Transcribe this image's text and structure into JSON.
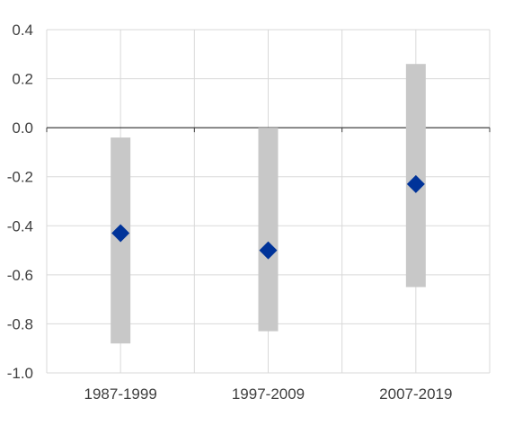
{
  "chart_data": {
    "type": "range-point",
    "title": "",
    "xlabel": "",
    "ylabel": "",
    "ylim": [
      -1.0,
      0.4
    ],
    "yticks": [
      -1.0,
      -0.8,
      -0.6,
      -0.4,
      -0.2,
      0.0,
      0.2,
      0.4
    ],
    "ytick_labels": [
      "-1.0",
      "-0.8",
      "-0.6",
      "-0.4",
      "-0.2",
      "0.0",
      "0.2",
      "0.4"
    ],
    "categories": [
      "1987-1999",
      "1997-2009",
      "2007-2019"
    ],
    "series": [
      {
        "kind": "range",
        "low": [
          -0.88,
          -0.83,
          -0.65
        ],
        "high": [
          -0.04,
          0.0,
          0.26
        ]
      },
      {
        "kind": "point",
        "values": [
          -0.43,
          -0.5,
          -0.23
        ]
      }
    ],
    "grid": true,
    "legend": "none",
    "colors": {
      "range": "#c8c8c8",
      "point": "#003399",
      "grid": "#d9d9d9",
      "zero_line": "#404040"
    }
  }
}
